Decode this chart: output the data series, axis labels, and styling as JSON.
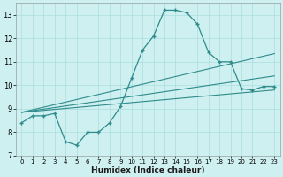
{
  "x": [
    0,
    1,
    2,
    3,
    4,
    5,
    6,
    7,
    8,
    9,
    10,
    11,
    12,
    13,
    14,
    15,
    16,
    17,
    18,
    19,
    20,
    21,
    22,
    23
  ],
  "main_y": [
    8.4,
    8.7,
    8.7,
    8.8,
    7.6,
    7.45,
    8.0,
    8.0,
    8.4,
    9.1,
    10.3,
    11.5,
    12.1,
    13.2,
    13.2,
    13.1,
    12.6,
    11.4,
    11.0,
    11.0,
    9.85,
    9.8,
    9.95,
    9.95
  ],
  "line1_x": [
    0,
    23
  ],
  "line1_y": [
    8.85,
    9.8
  ],
  "line2_x": [
    0,
    23
  ],
  "line2_y": [
    8.85,
    10.4
  ],
  "line3_x": [
    0,
    23
  ],
  "line3_y": [
    8.85,
    11.35
  ],
  "color": "#2e8b8b",
  "bg_color": "#cff0f0",
  "grid_color": "#aadddd",
  "xlabel": "Humidex (Indice chaleur)",
  "ylim": [
    7,
    13.5
  ],
  "xlim": [
    -0.5,
    23.5
  ],
  "yticks": [
    7,
    8,
    9,
    10,
    11,
    12,
    13
  ],
  "xticks": [
    0,
    1,
    2,
    3,
    4,
    5,
    6,
    7,
    8,
    9,
    10,
    11,
    12,
    13,
    14,
    15,
    16,
    17,
    18,
    19,
    20,
    21,
    22,
    23
  ]
}
